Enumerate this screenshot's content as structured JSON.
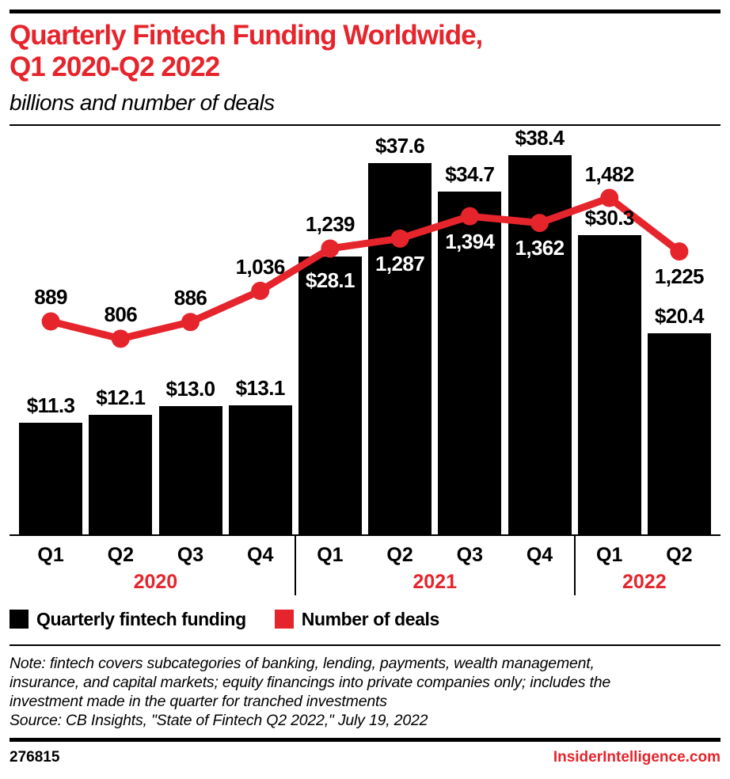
{
  "colors": {
    "brand_red": "#e6242c",
    "ink": "#000000"
  },
  "header": {
    "title_line1": "Quarterly Fintech Funding Worldwide,",
    "title_line2": "Q1 2020-Q2 2022",
    "subtitle": "billions and number of deals"
  },
  "chart_data": {
    "type": "bar+line",
    "categories": [
      "Q1",
      "Q2",
      "Q3",
      "Q4",
      "Q1",
      "Q2",
      "Q3",
      "Q4",
      "Q1",
      "Q2"
    ],
    "year_groups": [
      {
        "label": "2020",
        "span": 4
      },
      {
        "label": "2021",
        "span": 4
      },
      {
        "label": "2022",
        "span": 2
      }
    ],
    "series": [
      {
        "name": "Quarterly fintech funding",
        "type": "bar",
        "unit": "billions USD",
        "color": "#000000",
        "values": [
          11.3,
          12.1,
          13.0,
          13.1,
          28.1,
          37.6,
          34.7,
          38.4,
          30.3,
          20.4
        ],
        "labels": [
          "$11.3",
          "$12.1",
          "$13.0",
          "$13.1",
          "$28.1",
          "$37.6",
          "$34.7",
          "$38.4",
          "$30.3",
          "$20.4"
        ],
        "label_placement": [
          "above",
          "above",
          "above",
          "above",
          "inside",
          "above",
          "above",
          "above",
          "above",
          "above"
        ]
      },
      {
        "name": "Number of deals",
        "type": "line",
        "unit": "deals",
        "color": "#e6242c",
        "values": [
          889,
          806,
          886,
          1036,
          1239,
          1287,
          1394,
          1362,
          1482,
          1225
        ],
        "labels": [
          "889",
          "806",
          "886",
          "1,036",
          "1,239",
          "1,287",
          "1,394",
          "1,362",
          "1,482",
          "1,225"
        ],
        "label_placement": [
          "above",
          "above",
          "above",
          "above",
          "above",
          "on-bar",
          "on-bar",
          "on-bar",
          "above",
          "below"
        ]
      }
    ],
    "axis": {
      "value_axis_visible": false,
      "gridlines": false,
      "baseline_visible": true
    },
    "legend_position": "bottom"
  },
  "legend": [
    {
      "label": "Quarterly fintech funding",
      "color": "#000000"
    },
    {
      "label": "Number of deals",
      "color": "#e6242c"
    }
  ],
  "note": {
    "lines": [
      "Note: fintech covers subcategories of banking, lending, payments, wealth management,",
      "insurance, and capital markets; equity financings into private companies only; includes the",
      "investment made in the quarter for tranched investments"
    ],
    "source": "Source: CB Insights, \"State of Fintech Q2 2022,\" July 19, 2022"
  },
  "footer": {
    "chart_id": "276815",
    "site": "InsiderIntelligence.com"
  }
}
